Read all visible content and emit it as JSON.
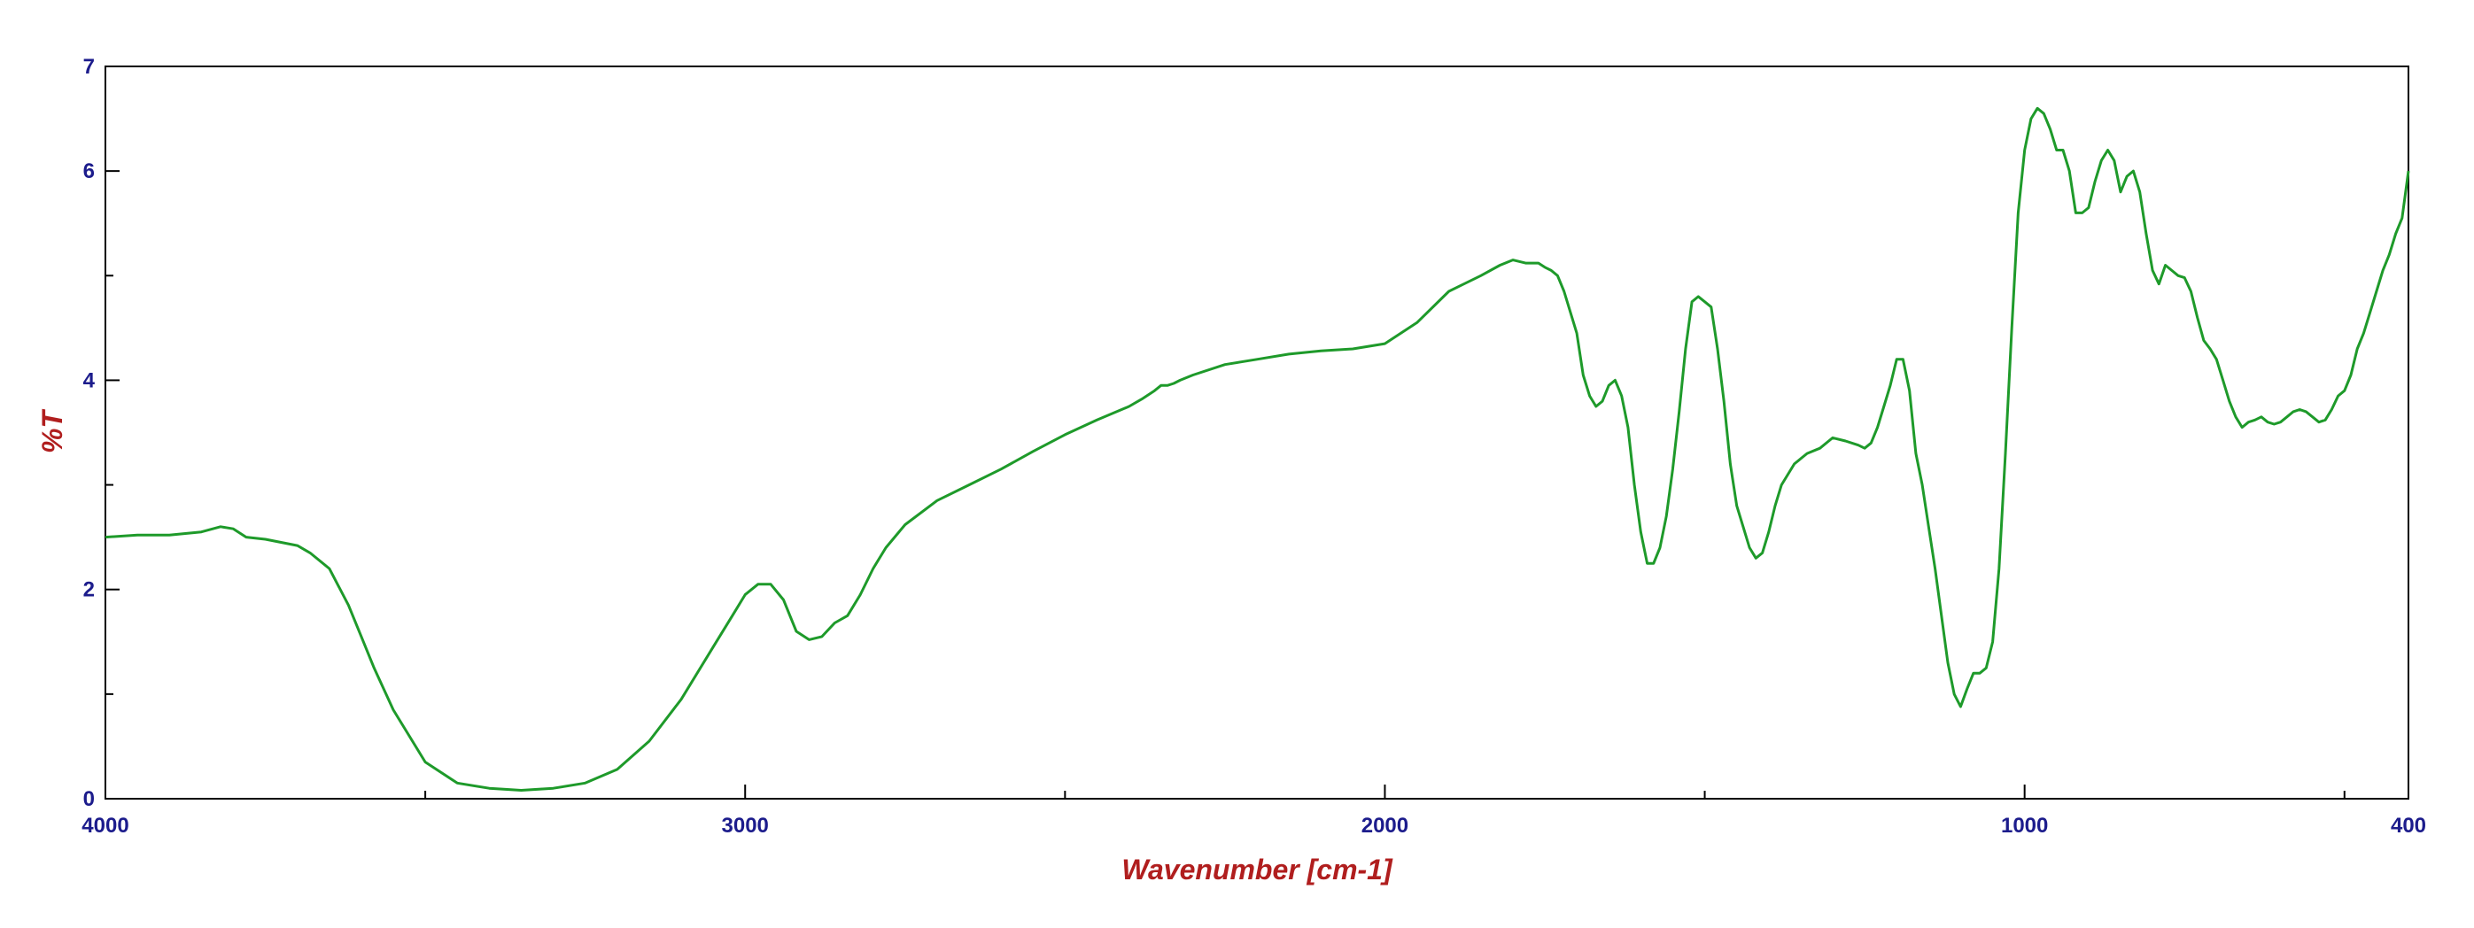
{
  "chart_data": {
    "type": "line",
    "title": "",
    "xlabel": "Wavenumber [cm-1]",
    "ylabel": "%T",
    "xlim": [
      4000,
      400
    ],
    "ylim": [
      0,
      7
    ],
    "x_reversed": true,
    "x_ticks": [
      4000,
      3000,
      2000,
      1000,
      400
    ],
    "x_minor_ticks": [
      3500,
      2500,
      1500,
      500
    ],
    "y_ticks": [
      0,
      2,
      4,
      6,
      7
    ],
    "y_minor_ticks": [
      1,
      3,
      5
    ],
    "grid": false,
    "line_color": "#1e9a2a",
    "series": [
      {
        "name": "",
        "x": [
          4000,
          3950,
          3900,
          3850,
          3820,
          3800,
          3780,
          3750,
          3700,
          3680,
          3650,
          3620,
          3600,
          3580,
          3550,
          3500,
          3450,
          3400,
          3350,
          3300,
          3250,
          3200,
          3150,
          3100,
          3050,
          3020,
          3000,
          2980,
          2960,
          2940,
          2930,
          2920,
          2900,
          2880,
          2860,
          2840,
          2820,
          2800,
          2780,
          2750,
          2700,
          2650,
          2600,
          2550,
          2500,
          2450,
          2400,
          2380,
          2360,
          2350,
          2340,
          2330,
          2320,
          2300,
          2250,
          2200,
          2150,
          2100,
          2050,
          2000,
          1950,
          1900,
          1850,
          1820,
          1800,
          1780,
          1760,
          1750,
          1740,
          1730,
          1720,
          1700,
          1690,
          1680,
          1670,
          1660,
          1650,
          1640,
          1630,
          1620,
          1610,
          1600,
          1590,
          1580,
          1570,
          1560,
          1550,
          1540,
          1530,
          1520,
          1510,
          1500,
          1490,
          1480,
          1470,
          1460,
          1450,
          1440,
          1430,
          1420,
          1410,
          1400,
          1390,
          1380,
          1360,
          1340,
          1320,
          1300,
          1280,
          1260,
          1250,
          1240,
          1230,
          1220,
          1210,
          1200,
          1190,
          1180,
          1170,
          1160,
          1150,
          1140,
          1130,
          1120,
          1110,
          1100,
          1090,
          1080,
          1070,
          1060,
          1050,
          1040,
          1030,
          1020,
          1010,
          1000,
          990,
          980,
          970,
          960,
          950,
          940,
          930,
          920,
          910,
          900,
          890,
          880,
          870,
          860,
          850,
          840,
          830,
          820,
          810,
          800,
          790,
          780,
          770,
          760,
          750,
          740,
          730,
          720,
          710,
          700,
          690,
          680,
          670,
          660,
          650,
          640,
          630,
          620,
          610,
          600,
          590,
          580,
          570,
          560,
          550,
          540,
          530,
          520,
          510,
          500,
          490,
          480,
          470,
          460,
          450,
          440,
          430,
          420,
          410,
          400
        ],
        "y": [
          2.5,
          2.52,
          2.52,
          2.55,
          2.6,
          2.58,
          2.5,
          2.48,
          2.42,
          2.35,
          2.2,
          1.85,
          1.55,
          1.25,
          0.85,
          0.35,
          0.15,
          0.1,
          0.08,
          0.1,
          0.15,
          0.28,
          0.55,
          0.95,
          1.45,
          1.75,
          1.95,
          2.05,
          2.05,
          1.9,
          1.75,
          1.6,
          1.52,
          1.55,
          1.68,
          1.75,
          1.95,
          2.2,
          2.4,
          2.62,
          2.85,
          3.0,
          3.15,
          3.32,
          3.48,
          3.62,
          3.75,
          3.82,
          3.9,
          3.95,
          3.95,
          3.97,
          4.0,
          4.05,
          4.15,
          4.2,
          4.25,
          4.28,
          4.3,
          4.35,
          4.55,
          4.85,
          5.0,
          5.1,
          5.15,
          5.12,
          5.12,
          5.08,
          5.05,
          5.0,
          4.85,
          4.45,
          4.05,
          3.85,
          3.75,
          3.8,
          3.95,
          4.0,
          3.85,
          3.55,
          3.0,
          2.55,
          2.25,
          2.25,
          2.4,
          2.7,
          3.15,
          3.7,
          4.3,
          4.75,
          4.8,
          4.75,
          4.7,
          4.3,
          3.8,
          3.2,
          2.8,
          2.6,
          2.4,
          2.3,
          2.35,
          2.55,
          2.8,
          3.0,
          3.2,
          3.3,
          3.35,
          3.45,
          3.42,
          3.38,
          3.35,
          3.4,
          3.55,
          3.75,
          3.95,
          4.2,
          4.2,
          3.9,
          3.3,
          3.0,
          2.6,
          2.2,
          1.75,
          1.3,
          1.0,
          0.88,
          1.05,
          1.2,
          1.2,
          1.25,
          1.5,
          2.2,
          3.3,
          4.5,
          5.6,
          6.2,
          6.5,
          6.6,
          6.55,
          6.4,
          6.2,
          6.2,
          6.0,
          5.6,
          5.6,
          5.65,
          5.9,
          6.1,
          6.2,
          6.1,
          5.8,
          5.95,
          6.0,
          5.8,
          5.4,
          5.05,
          4.92,
          5.1,
          5.05,
          5.0,
          4.98,
          4.85,
          4.6,
          4.38,
          4.3,
          4.2,
          4.0,
          3.8,
          3.65,
          3.55,
          3.6,
          3.62,
          3.65,
          3.6,
          3.58,
          3.6,
          3.65,
          3.7,
          3.72,
          3.7,
          3.65,
          3.6,
          3.62,
          3.72,
          3.85,
          3.9,
          4.05,
          4.3,
          4.45,
          4.65,
          4.85,
          5.05,
          5.2,
          5.4,
          5.55,
          6.0
        ]
      }
    ]
  }
}
